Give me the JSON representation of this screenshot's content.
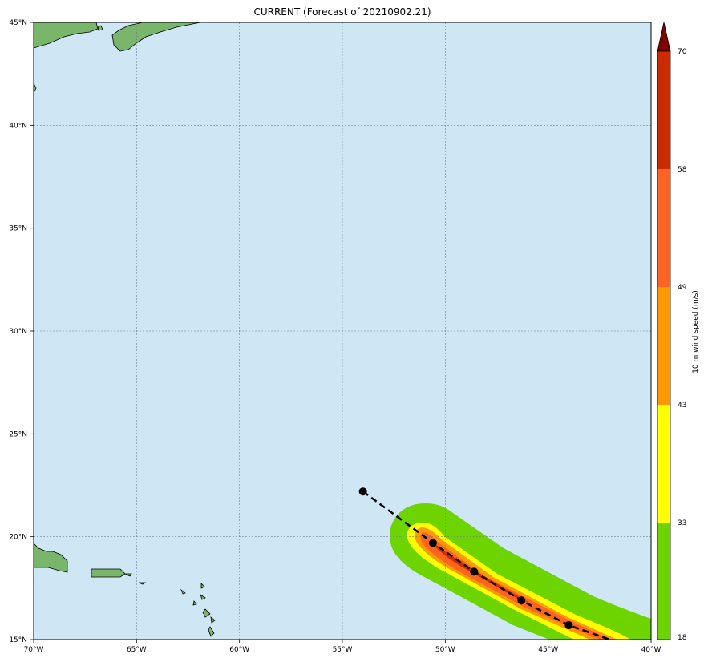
{
  "title": "CURRENT (Forecast of 20210902.21)",
  "colorbar": {
    "label": "10 m wind speed (m/s)",
    "levels": [
      "18",
      "33",
      "43",
      "49",
      "58",
      "70"
    ],
    "colors": [
      "#6dd400",
      "#ffff00",
      "#ff9900",
      "#ff6422",
      "#cc2b00"
    ],
    "extend_color": "#800000"
  },
  "ocean_color": "#cfe6f5",
  "x_ticks": [
    "70°W",
    "65°W",
    "60°W",
    "55°W",
    "50°W",
    "45°W",
    "40°W"
  ],
  "y_ticks": [
    "15°N",
    "20°N",
    "25°N",
    "30°N",
    "35°N",
    "40°N",
    "45°N"
  ],
  "extent": {
    "lon": [
      -70,
      -40
    ],
    "lat": [
      15,
      45
    ]
  },
  "track": [
    {
      "lon": -54.0,
      "lat": 22.2
    },
    {
      "lon": -50.6,
      "lat": 19.7
    },
    {
      "lon": -48.6,
      "lat": 18.3
    },
    {
      "lon": -46.3,
      "lat": 16.9
    },
    {
      "lon": -44.0,
      "lat": 15.7
    },
    {
      "lon": -42.0,
      "lat": 15.0
    }
  ]
}
